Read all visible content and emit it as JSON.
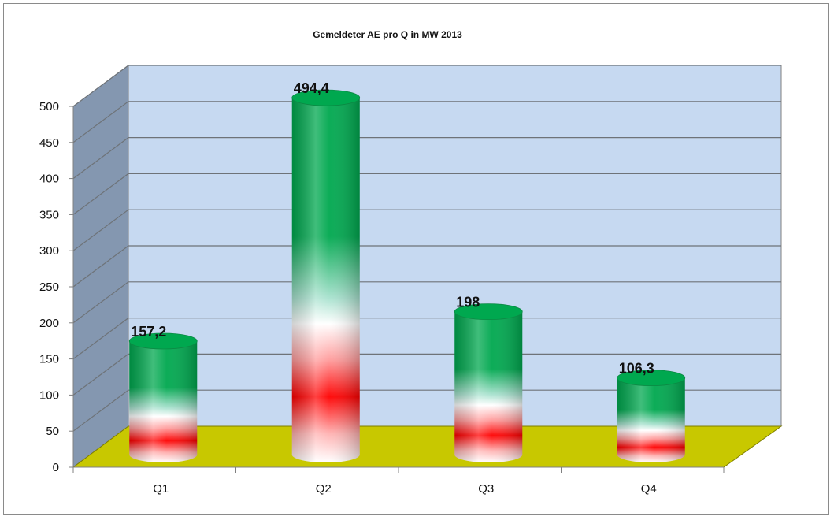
{
  "chart_data": {
    "type": "bar",
    "style": "3d-cylinder",
    "title": "Gemeldeter AE pro  Q in MW  2013",
    "categories": [
      "Q1",
      "Q2",
      "Q3",
      "Q4"
    ],
    "values": [
      157.2,
      494.4,
      198,
      106.3
    ],
    "data_labels": [
      "157,2",
      "494,4",
      "198",
      "106,3"
    ],
    "y_ticks": [
      "0",
      "50",
      "100",
      "150",
      "200",
      "250",
      "300",
      "350",
      "400",
      "450",
      "500"
    ],
    "ylim": [
      0,
      500
    ],
    "xlabel": "",
    "ylabel": "",
    "grid": true,
    "legend": "none",
    "colors": {
      "back_wall": "#c6d9f1",
      "side_wall": "#8497b0",
      "floor": "#c8c800",
      "gridline": "#6e7378",
      "bar_top": "#00a84f",
      "bar_mid": "#ff0000",
      "bar_light": "#ffffff"
    }
  }
}
